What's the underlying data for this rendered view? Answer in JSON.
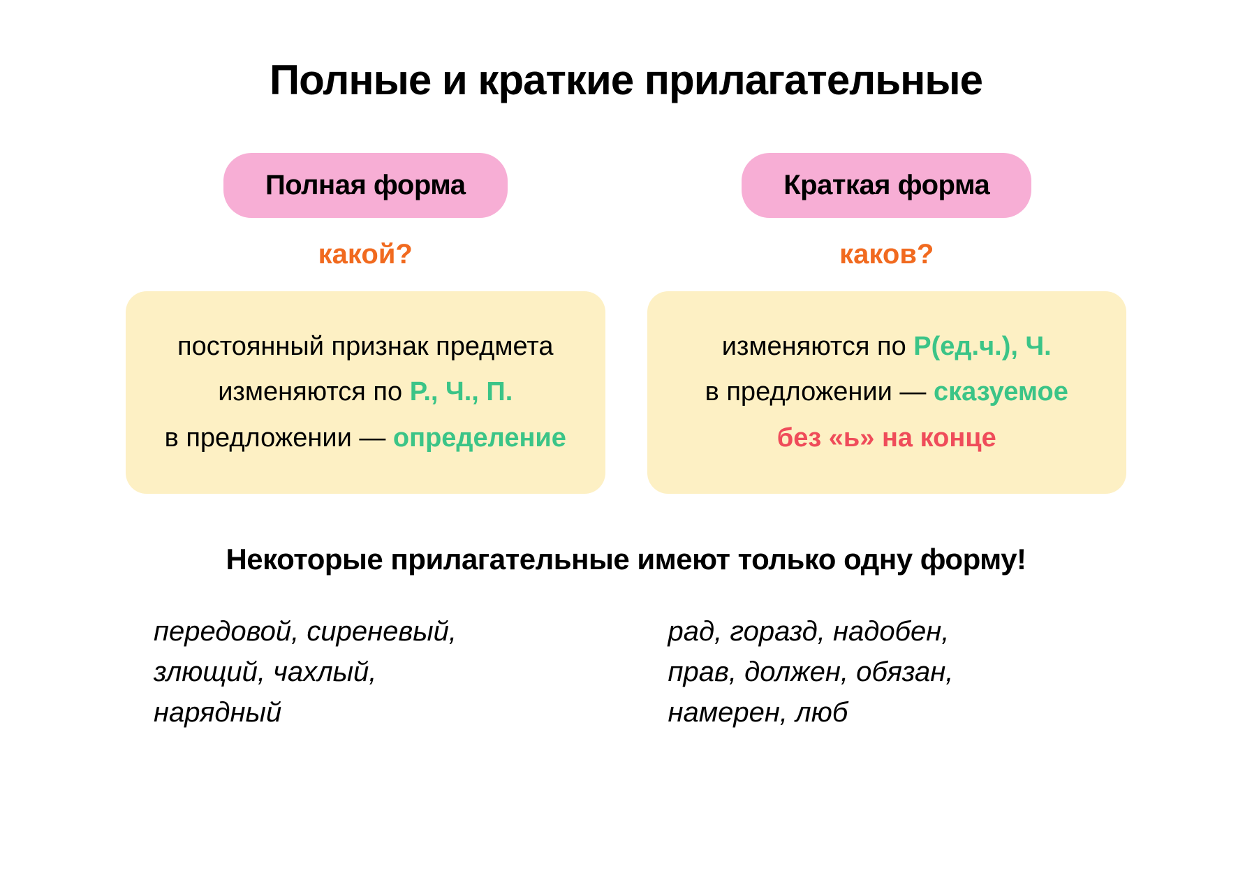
{
  "title": "Полные и краткие прилагательные",
  "colors": {
    "pill_bg": "#f7aed5",
    "box_bg": "#fdf0c4",
    "question": "#f16a1f",
    "green": "#3bc487",
    "red": "#ef4c5a",
    "text": "#000000",
    "background": "#ffffff"
  },
  "typography": {
    "title_size": 60,
    "pill_size": 40,
    "question_size": 40,
    "box_size": 38,
    "note_title_size": 42,
    "example_size": 40
  },
  "left": {
    "header": "Полная форма",
    "question": "какой?",
    "line1": "постоянный признак предмета",
    "line2_prefix": "изменяются по ",
    "line2_highlight": "Р., Ч., П.",
    "line3_prefix": "в предложении — ",
    "line3_highlight": "определение"
  },
  "right": {
    "header": "Краткая форма",
    "question": "каков?",
    "line1_prefix": "изменяются по ",
    "line1_highlight": "Р(ед.ч.), Ч.",
    "line2_prefix": "в предложении — ",
    "line2_highlight": "сказуемое",
    "line3": "без «ь» на конце"
  },
  "note_title": "Некоторые прилагательные имеют только одну форму!",
  "examples": {
    "left_line1": "передовой, сиреневый,",
    "left_line2": "злющий, чахлый,",
    "left_line3": "нарядный",
    "right_line1": "рад, горазд, надобен,",
    "right_line2": "прав, должен, обязан,",
    "right_line3": "намерен, люб"
  }
}
